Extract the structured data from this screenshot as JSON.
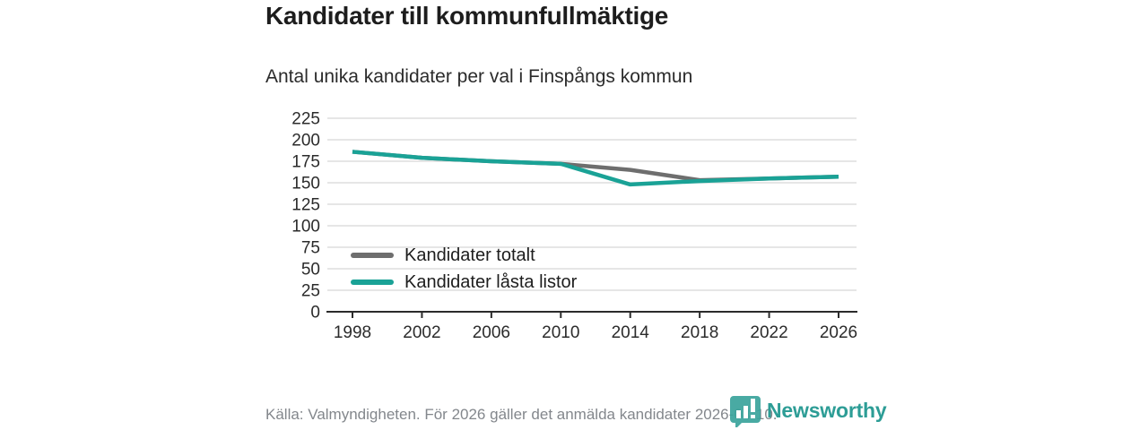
{
  "header": {
    "title": "Kandidater till kommunfullmäktige",
    "subtitle": "Antal unika kandidater per val i Finspångs kommun"
  },
  "chart_data": {
    "type": "line",
    "title": "Kandidater till kommunfullmäktige",
    "subtitle": "Antal unika kandidater per val i Finspångs kommun",
    "categories": [
      "1998",
      "2002",
      "2006",
      "2010",
      "2014",
      "2018",
      "2022",
      "2026"
    ],
    "series": [
      {
        "name": "Kandidater totalt",
        "color": "#6e6e6e",
        "values": [
          186,
          179,
          175,
          172,
          165,
          153,
          155,
          157
        ]
      },
      {
        "name": "Kandidater låsta listor",
        "color": "#1aa296",
        "values": [
          186,
          179,
          175,
          172,
          148,
          152,
          155,
          157
        ]
      }
    ],
    "xlabel": "",
    "ylabel": "",
    "ylim": [
      0,
      225
    ],
    "ytick_step": 25,
    "grid": "horizontal",
    "legend_position": "inside-bottom-left"
  },
  "footer": {
    "source": "Källa: Valmyndigheten. För 2026 gäller det anmälda kandidater 2026-04-10.",
    "brand": "Newsworthy"
  },
  "colors": {
    "accent": "#1aa296",
    "series_gray": "#6e6e6e",
    "brand_text": "#2d9d96",
    "title_text": "#1d1d1d",
    "muted_text": "#83878c",
    "gridline": "#dedede",
    "axis": "#2b2b2b"
  }
}
